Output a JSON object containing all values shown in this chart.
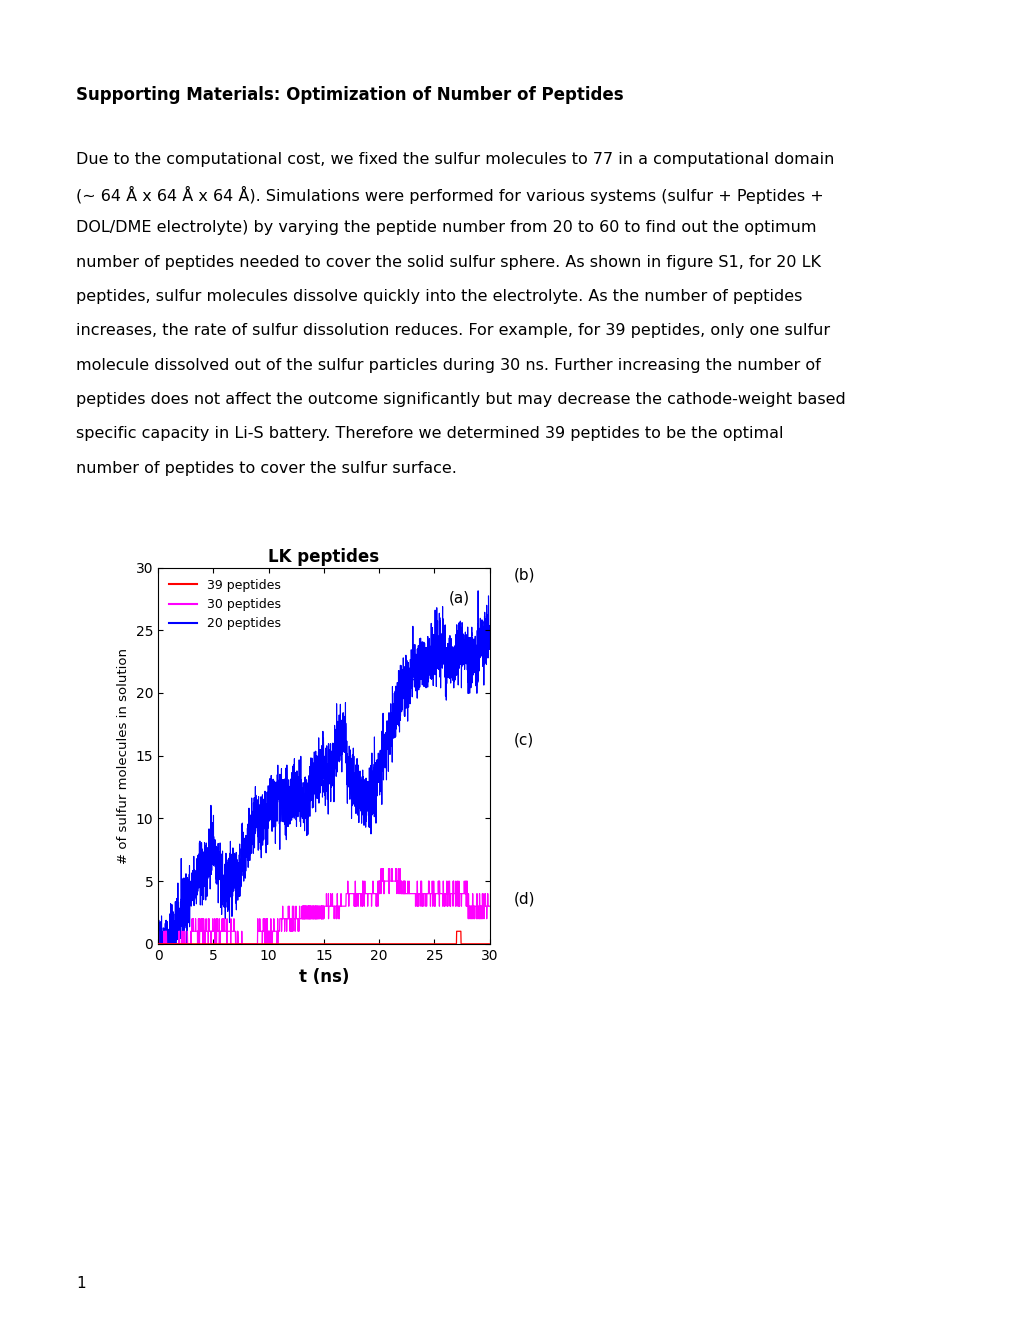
{
  "title_bold": "Supporting Materials: Optimization of Number of Peptides",
  "body_lines": [
    "Due to the computational cost, we fixed the sulfur molecules to 77 in a computational domain",
    "(∼ 64 Å x 64 Å x 64 Å). Simulations were performed for various systems (sulfur + Peptides +",
    "DOL/DME electrolyte) by varying the peptide number from 20 to 60 to find out the optimum",
    "number of peptides needed to cover the solid sulfur sphere. As shown in figure S1, for 20 LK",
    "peptides, sulfur molecules dissolve quickly into the electrolyte. As the number of peptides",
    "increases, the rate of sulfur dissolution reduces. For example, for 39 peptides, only one sulfur",
    "molecule dissolved out of the sulfur particles during 30 ns. Further increasing the number of",
    "peptides does not affect the outcome significantly but may decrease the cathode-weight based",
    "specific capacity in Li-S battery. Therefore we determined 39 peptides to be the optimal",
    "number of peptides to cover the sulfur surface."
  ],
  "chart_title": "LK peptides",
  "chart_xlabel": "t (ns)",
  "chart_ylabel": "# of sulfur molecules in solution",
  "chart_label_a": "(a)",
  "xlim": [
    0,
    30
  ],
  "ylim": [
    0,
    30
  ],
  "xticks": [
    0,
    5,
    10,
    15,
    20,
    25,
    30
  ],
  "yticks": [
    0,
    5,
    10,
    15,
    20,
    25,
    30
  ],
  "legend_entries": [
    "39 peptides",
    "30 peptides",
    "20 peptides"
  ],
  "legend_colors": [
    "#ff0000",
    "#ff00ff",
    "#0000ff"
  ],
  "img_labels": [
    "(b)",
    "(c)",
    "(d)"
  ],
  "page_number": "1",
  "background_color": "#ffffff",
  "text_color": "#000000"
}
